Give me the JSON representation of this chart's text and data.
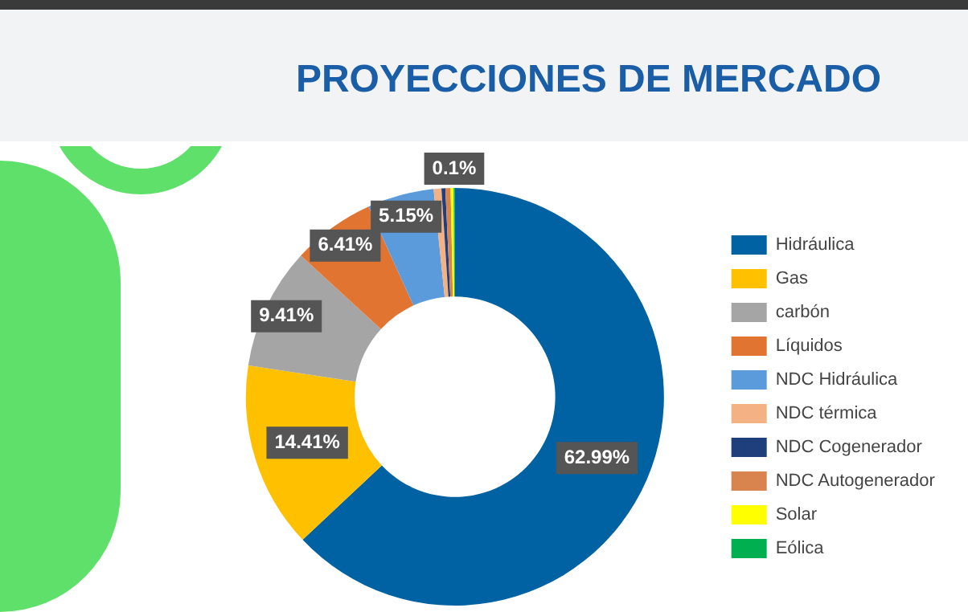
{
  "chart_data": {
    "type": "donut",
    "title": "PROYECCIONES DE MERCADO",
    "categories": [
      "Hidráulica",
      "Gas",
      "carbón",
      "Líquidos",
      "NDC Hidráulica",
      "NDC térmica",
      "NDC Cogenerador",
      "NDC Autogenerador",
      "Solar",
      "Eólica"
    ],
    "values": [
      62.99,
      14.41,
      9.41,
      6.41,
      5.15,
      0.6,
      0.3,
      0.4,
      0.23,
      0.1
    ],
    "colors": [
      "#0062a3",
      "#ffc000",
      "#a5a5a5",
      "#e27431",
      "#5b9bdc",
      "#f4b183",
      "#1f3f7c",
      "#d9834f",
      "#ffff00",
      "#00b050"
    ],
    "value_labels": [
      "62.99%",
      "14.41%",
      "9.41%",
      "6.41%",
      "5.15%",
      null,
      null,
      null,
      null,
      "0.1%"
    ],
    "legend": "right"
  }
}
